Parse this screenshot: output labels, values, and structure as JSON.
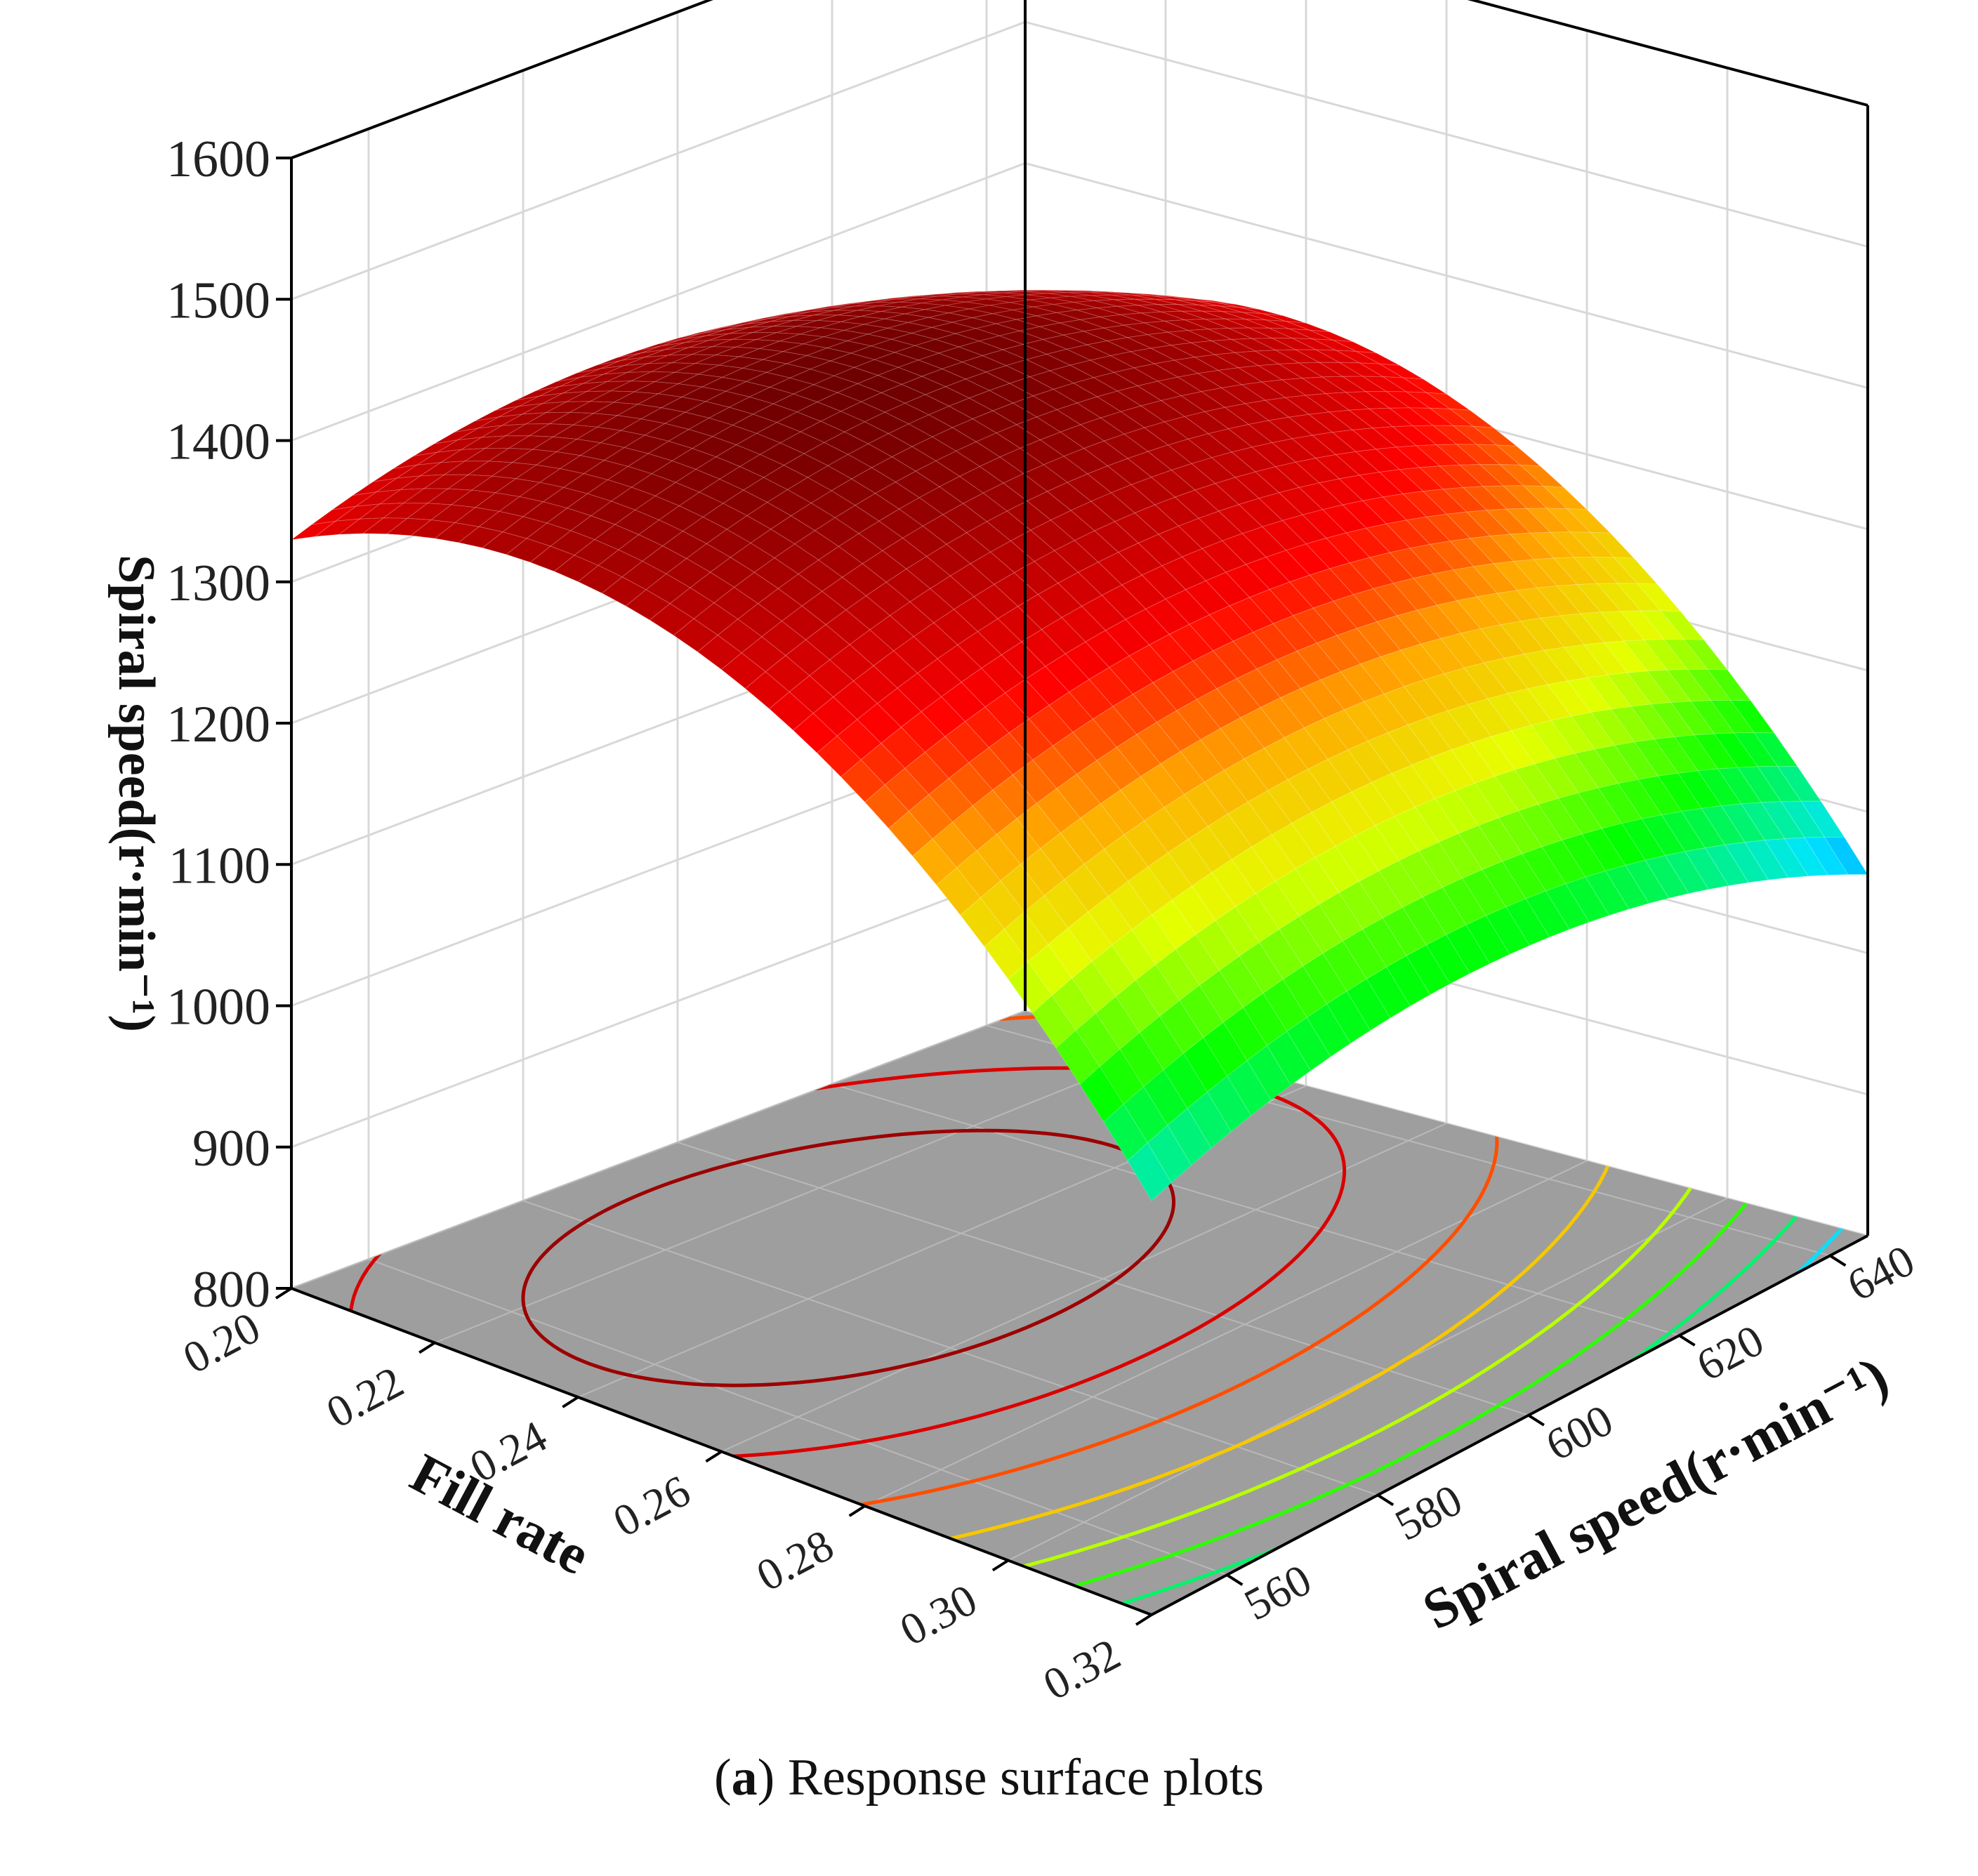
{
  "caption": {
    "label": "a",
    "text": "Response surface plots"
  },
  "chart_data": {
    "type": "surface3d",
    "title": "",
    "zlabel": "Spiral speed(r·min⁻¹)",
    "xlabel": "Fill rate",
    "ylabel": "Spiral speed(r·min⁻¹)",
    "x_ticks": [
      "0.20",
      "0.22",
      "0.24",
      "0.26",
      "0.28",
      "0.30",
      "0.32"
    ],
    "y_ticks": [
      "560",
      "580",
      "600",
      "620",
      "640"
    ],
    "z_ticks": [
      "800",
      "900",
      "1000",
      "1100",
      "1200",
      "1300",
      "1400",
      "1500",
      "1600"
    ],
    "xlim": [
      0.2,
      0.32
    ],
    "ylim": [
      550,
      645
    ],
    "zlim": [
      800,
      1600
    ],
    "surface_corners": {
      "fill_0.20_speed_550": 1240,
      "fill_0.20_speed_645": 1380,
      "fill_0.32_speed_550": 960,
      "fill_0.32_speed_645": 1000
    },
    "surface_peak": {
      "fill_rate": 0.235,
      "spiral_speed": 590,
      "value": 1420
    },
    "colormap": "rainbow",
    "contour_on_floor": true,
    "grid": true
  }
}
